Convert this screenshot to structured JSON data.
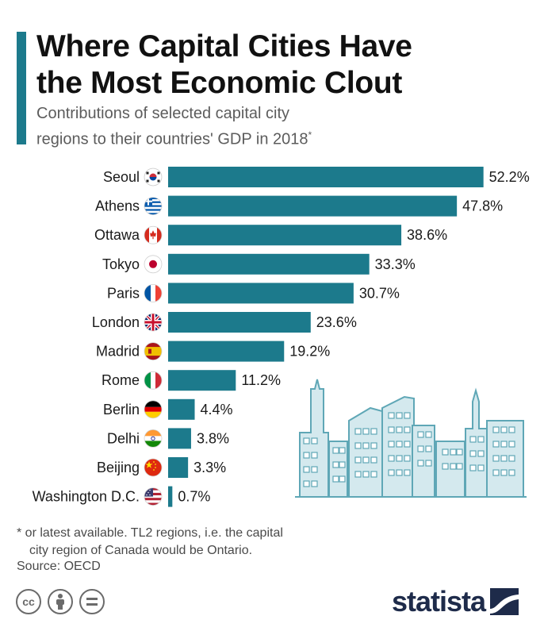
{
  "header": {
    "title_line1": "Where Capital Cities Have",
    "title_line2": "the Most Economic Clout",
    "subtitle_line1": "Contributions of selected capital city",
    "subtitle_line2": "regions to their countries' GDP in 2018",
    "subtitle_mark": "*"
  },
  "chart_data": {
    "type": "bar",
    "orientation": "horizontal",
    "categories": [
      "Seoul",
      "Athens",
      "Ottawa",
      "Tokyo",
      "Paris",
      "London",
      "Madrid",
      "Rome",
      "Berlin",
      "Delhi",
      "Beijing",
      "Washington D.C."
    ],
    "values": [
      52.2,
      47.8,
      38.6,
      33.3,
      30.7,
      23.6,
      19.2,
      11.2,
      4.4,
      3.8,
      3.3,
      0.7
    ],
    "value_labels": [
      "52.2%",
      "47.8%",
      "38.6%",
      "33.3%",
      "30.7%",
      "23.6%",
      "19.2%",
      "11.2%",
      "4.4%",
      "3.8%",
      "3.3%",
      "0.7%"
    ],
    "flag_icons": [
      "south-korea-flag-icon",
      "greece-flag-icon",
      "canada-flag-icon",
      "japan-flag-icon",
      "france-flag-icon",
      "uk-flag-icon",
      "spain-flag-icon",
      "italy-flag-icon",
      "germany-flag-icon",
      "india-flag-icon",
      "china-flag-icon",
      "usa-flag-icon"
    ],
    "unit": "%",
    "bar_color": "#1c7a8c",
    "xlim": [
      0,
      55
    ]
  },
  "footer": {
    "note_line1": "* or latest available. TL2 regions, i.e. the capital",
    "note_line2": "city region of Canada would be Ontario.",
    "source": "Source: OECD",
    "license_icons": [
      "cc-icon",
      "attribution-icon",
      "no-derivatives-icon"
    ],
    "brand": "statista"
  },
  "colors": {
    "accent": "#1c7a8c",
    "skyline_fill": "#d4e9ee",
    "skyline_stroke": "#5fa7b6",
    "brand": "#1e2b4a"
  }
}
